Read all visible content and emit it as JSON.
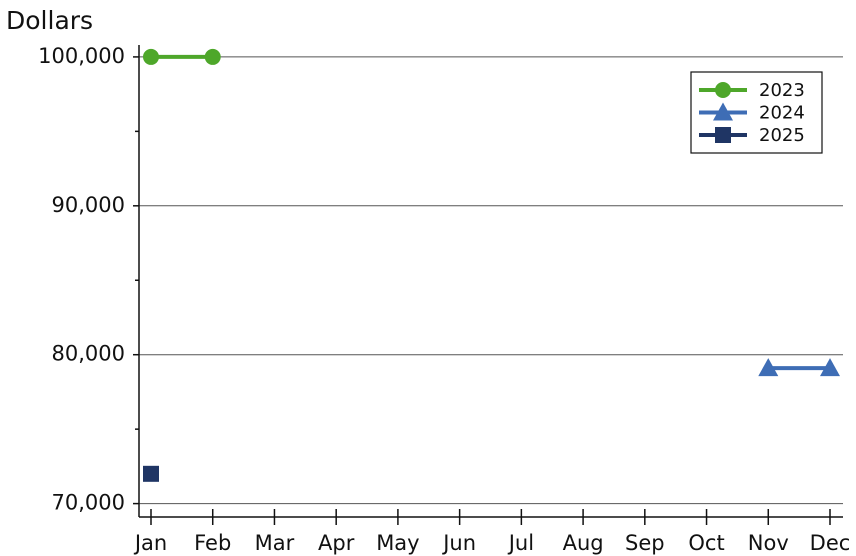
{
  "chart_data": {
    "type": "line",
    "y_label": "Dollars",
    "categories": [
      "Jan",
      "Feb",
      "Mar",
      "Apr",
      "May",
      "Jun",
      "Jul",
      "Aug",
      "Sep",
      "Oct",
      "Nov",
      "Dec"
    ],
    "series": [
      {
        "name": "2023",
        "color": "#4ea72a",
        "marker": "circle",
        "values": [
          100000,
          100000,
          null,
          null,
          null,
          null,
          null,
          null,
          null,
          null,
          null,
          null
        ]
      },
      {
        "name": "2024",
        "color": "#3e6db5",
        "marker": "triangle",
        "values": [
          null,
          null,
          null,
          null,
          null,
          null,
          null,
          null,
          null,
          null,
          79100,
          79100
        ]
      },
      {
        "name": "2025",
        "color": "#1f3564",
        "marker": "square",
        "values": [
          72000,
          null,
          null,
          null,
          null,
          null,
          null,
          null,
          null,
          null,
          null,
          null
        ]
      }
    ],
    "ylim": [
      69100,
      100800
    ],
    "yticks": [
      {
        "value": 70000,
        "label": "70,000"
      },
      {
        "value": 80000,
        "label": "80,000"
      },
      {
        "value": 90000,
        "label": "90,000"
      },
      {
        "value": 100000,
        "label": "100,000"
      }
    ],
    "yticks_minor": [
      75000,
      85000,
      95000
    ],
    "grid": true,
    "legend": "upper right"
  }
}
